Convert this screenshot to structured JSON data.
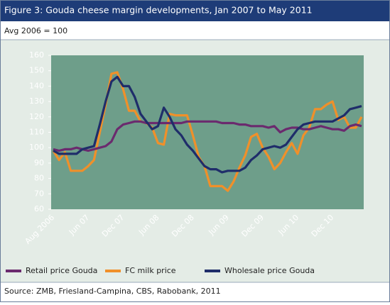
{
  "chart_data": {
    "type": "line",
    "title": "Figure 3: Gouda cheese margin developments, Jan 2007 to May 2011",
    "subtitle": "Avg 2006 = 100",
    "source": "Source: ZMB, Friesland-Campina, CBS, Rabobank, 2011",
    "categories": [
      "Aug 2006",
      null,
      null,
      null,
      null,
      null,
      "Jun 07",
      null,
      null,
      null,
      null,
      null,
      "Dec 07",
      null,
      null,
      null,
      null,
      null,
      "Jun 08",
      null,
      null,
      null,
      null,
      null,
      "Dec 08",
      null,
      null,
      null,
      null,
      null,
      "Jun 09",
      null,
      null,
      null,
      null,
      null,
      "Dec 09",
      null,
      null,
      null,
      null,
      null,
      "Jun 10",
      null,
      null,
      null,
      null,
      null,
      "Dec 10",
      null,
      null,
      null,
      null,
      null
    ],
    "series": [
      {
        "name": "Retail price Gouda",
        "color": "#6b2a6e",
        "values": [
          99,
          98,
          99,
          99,
          100,
          99,
          98,
          99,
          100,
          101,
          104,
          112,
          115,
          116,
          117,
          117,
          116,
          116,
          116,
          116,
          116,
          116,
          116,
          117,
          117,
          117,
          117,
          117,
          117,
          116,
          116,
          116,
          115,
          115,
          114,
          114,
          114,
          113,
          114,
          110,
          112,
          113,
          113,
          112,
          112,
          113,
          114,
          113,
          112,
          112,
          111,
          114,
          115,
          114
        ]
      },
      {
        "name": "FC milk price",
        "color": "#f0902a",
        "values": [
          98,
          92,
          97,
          85,
          85,
          85,
          88,
          92,
          110,
          128,
          148,
          149,
          138,
          124,
          124,
          117,
          116,
          113,
          103,
          102,
          122,
          121,
          121,
          121,
          108,
          94,
          88,
          75,
          75,
          75,
          72,
          78,
          87,
          95,
          107,
          109,
          100,
          94,
          86,
          90,
          97,
          103,
          96,
          108,
          113,
          125,
          125,
          128,
          130,
          118,
          120,
          113,
          113,
          120
        ]
      },
      {
        "name": "Wholesale price Gouda",
        "color": "#1f2d6a",
        "values": [
          98,
          96,
          96,
          96,
          96,
          99,
          100,
          101,
          115,
          130,
          143,
          146,
          140,
          140,
          133,
          122,
          117,
          112,
          114,
          126,
          120,
          112,
          108,
          102,
          98,
          93,
          88,
          86,
          86,
          84,
          85,
          85,
          85,
          87,
          92,
          95,
          99,
          100,
          101,
          100,
          102,
          107,
          112,
          115,
          116,
          117,
          117,
          117,
          117,
          119,
          121,
          125,
          126,
          127
        ]
      }
    ],
    "ylim": [
      60,
      160
    ],
    "yticks": [
      60,
      70,
      80,
      90,
      100,
      110,
      120,
      130,
      140,
      150,
      160
    ]
  }
}
